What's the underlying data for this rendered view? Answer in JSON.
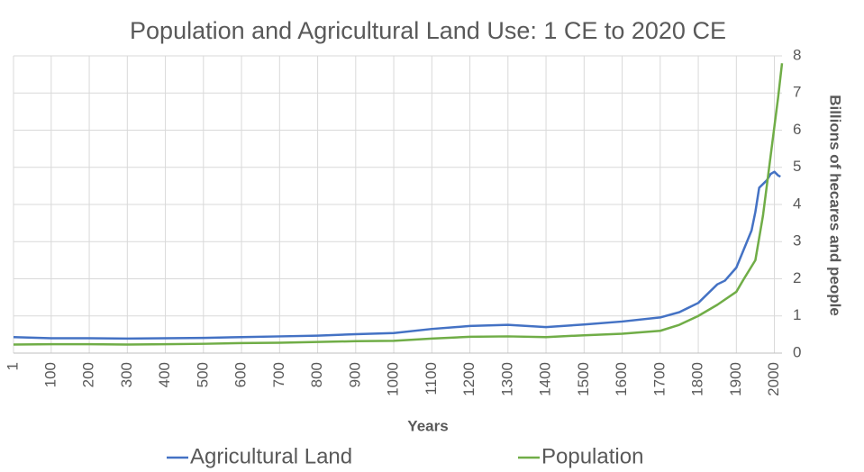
{
  "chart_data": {
    "type": "line",
    "title": "Population and Agricultural Land Use: 1 CE to 2020 CE",
    "x_label": "Years",
    "y_label": "Billions of hecares and people",
    "xlim": [
      1,
      2020
    ],
    "xticks": [
      1,
      100,
      200,
      300,
      400,
      500,
      600,
      700,
      800,
      900,
      1000,
      1100,
      1200,
      1300,
      1400,
      1500,
      1600,
      1700,
      1800,
      1900,
      2000
    ],
    "ylim": [
      0,
      8
    ],
    "yticks": [
      0,
      1,
      2,
      3,
      4,
      5,
      6,
      7,
      8
    ],
    "grid": true,
    "legend": "bottom",
    "series": [
      {
        "name": "Agricultural Land",
        "color": "#4472c4",
        "x": [
          1,
          100,
          200,
          300,
          400,
          500,
          600,
          700,
          800,
          900,
          1000,
          1100,
          1200,
          1300,
          1400,
          1500,
          1600,
          1700,
          1750,
          1800,
          1850,
          1870,
          1900,
          1920,
          1940,
          1950,
          1960,
          1980,
          1990,
          2000,
          2010,
          2016
        ],
        "values": [
          0.43,
          0.4,
          0.4,
          0.39,
          0.4,
          0.41,
          0.43,
          0.45,
          0.47,
          0.51,
          0.54,
          0.65,
          0.73,
          0.76,
          0.7,
          0.77,
          0.85,
          0.96,
          1.1,
          1.35,
          1.85,
          1.95,
          2.3,
          2.8,
          3.3,
          3.8,
          4.45,
          4.65,
          4.82,
          4.88,
          4.78,
          4.75
        ]
      },
      {
        "name": "Population",
        "color": "#70ad47",
        "x": [
          1,
          100,
          200,
          300,
          400,
          500,
          600,
          700,
          800,
          900,
          1000,
          1100,
          1200,
          1300,
          1400,
          1500,
          1600,
          1700,
          1750,
          1800,
          1850,
          1900,
          1920,
          1950,
          1970,
          1990,
          2000,
          2010,
          2020
        ],
        "values": [
          0.23,
          0.24,
          0.24,
          0.23,
          0.24,
          0.25,
          0.27,
          0.28,
          0.3,
          0.32,
          0.33,
          0.39,
          0.44,
          0.45,
          0.43,
          0.48,
          0.52,
          0.6,
          0.76,
          1.0,
          1.3,
          1.65,
          2.0,
          2.5,
          3.7,
          5.3,
          6.1,
          6.9,
          7.8
        ]
      }
    ]
  }
}
